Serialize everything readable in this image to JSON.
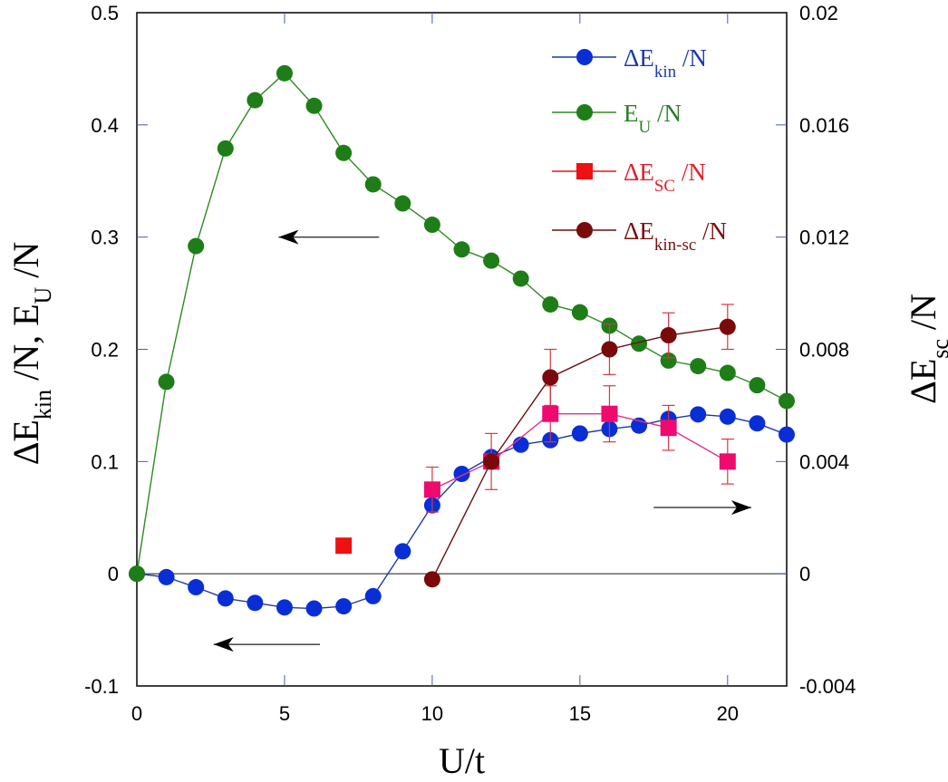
{
  "chart_data": {
    "type": "line",
    "title": "",
    "xlabel": "U/t",
    "ylabel_left": {
      "main": "ΔE",
      "sub": "kin",
      "rest": " /N,  E",
      "sub2": "U",
      "rest2": " /N"
    },
    "ylabel_right": {
      "main": "ΔE",
      "sub": "sc",
      "rest": " /N"
    },
    "xlim": [
      0,
      22
    ],
    "ylim_left": [
      -0.1,
      0.5
    ],
    "ylim_right": [
      -0.004,
      0.02
    ],
    "x_ticks": [
      "0",
      "5",
      "10",
      "15",
      "20"
    ],
    "x_tick_values": [
      0,
      5,
      10,
      15,
      20
    ],
    "y_left_ticks": [
      "-0.1",
      "0",
      "0.1",
      "0.2",
      "0.3",
      "0.4",
      "0.5"
    ],
    "y_left_tick_values": [
      -0.1,
      0,
      0.1,
      0.2,
      0.3,
      0.4,
      0.5
    ],
    "y_right_ticks": [
      "-0.004",
      "0",
      "0.004",
      "0.008",
      "0.012",
      "0.016",
      "0.02"
    ],
    "y_right_tick_values": [
      -0.004,
      0,
      0.004,
      0.008,
      0.012,
      0.016,
      0.02
    ],
    "zero_line": true,
    "grid": false,
    "legend_position": "top-right",
    "series": [
      {
        "name": "ΔE_kin /N",
        "legend": {
          "main": "ΔE",
          "sub": "kin",
          "rest": " /N"
        },
        "axis": "left",
        "marker": "circle",
        "color": "#0a2ed6",
        "line_color": "#1f3a9e",
        "x": [
          0,
          1,
          2,
          3,
          4,
          5,
          6,
          7,
          8,
          9,
          10,
          11,
          12,
          13,
          14,
          15,
          16,
          17,
          18,
          19,
          20,
          21,
          22
        ],
        "y": [
          0,
          -0.003,
          -0.012,
          -0.022,
          -0.026,
          -0.03,
          -0.031,
          -0.029,
          -0.02,
          0.02,
          0.061,
          0.089,
          0.104,
          0.115,
          0.119,
          0.125,
          0.129,
          0.132,
          0.138,
          0.142,
          0.14,
          0.134,
          0.124
        ]
      },
      {
        "name": "E_U /N",
        "legend": {
          "main": "E",
          "sub": "U",
          "rest": " /N"
        },
        "axis": "left",
        "marker": "circle",
        "color": "#1e7d17",
        "line_color": "#2e8a22",
        "x": [
          0,
          1,
          2,
          3,
          4,
          5,
          6,
          7,
          8,
          9,
          10,
          11,
          12,
          13,
          14,
          15,
          16,
          17,
          18,
          19,
          20,
          21,
          22
        ],
        "y": [
          0,
          0.171,
          0.292,
          0.379,
          0.422,
          0.446,
          0.417,
          0.375,
          0.347,
          0.33,
          0.311,
          0.289,
          0.279,
          0.263,
          0.24,
          0.233,
          0.221,
          0.205,
          0.19,
          0.185,
          0.179,
          0.168,
          0.154
        ]
      },
      {
        "name": "ΔE_sc /N",
        "legend": {
          "main": "ΔE",
          "sub": "SC",
          "rest": " /N"
        },
        "axis": "right",
        "marker": "square",
        "color": "#ee0a6e",
        "legend_color": "#ee1111",
        "line_color": "#e0338a",
        "error_color": "#d8383e",
        "isolated": [
          {
            "x": 7,
            "y": 0.001,
            "color": "#ee1111"
          }
        ],
        "x": [
          10,
          12,
          14,
          16,
          18,
          20
        ],
        "y": [
          0.003,
          0.004,
          0.0057,
          0.0057,
          0.0052,
          0.004
        ],
        "err": [
          0.0008,
          0.001,
          0.001,
          0.001,
          0.0008,
          0.0008
        ]
      },
      {
        "name": "ΔE_kin-sc /N",
        "legend": {
          "main": "ΔE",
          "sub": "kin-sc",
          "rest": " /N"
        },
        "axis": "right",
        "marker": "circle",
        "color": "#7a0a0a",
        "line_color": "#6b0f14",
        "error_color": "#d8383e",
        "x": [
          10,
          12,
          14,
          16,
          18,
          20
        ],
        "y": [
          -0.0002,
          0.004,
          0.007,
          0.008,
          0.0085,
          0.0088
        ],
        "err": [
          0,
          0,
          0.001,
          0.0009,
          0.0008,
          0.0008
        ]
      }
    ],
    "annotations": [
      {
        "type": "arrow",
        "direction": "left",
        "meaning": "green curve uses left axis",
        "from": [
          8.2,
          0.3
        ],
        "to": [
          4.8,
          0.3
        ]
      },
      {
        "type": "arrow",
        "direction": "left",
        "meaning": "blue curve uses left axis",
        "from": [
          6.2,
          -0.063
        ],
        "to": [
          2.6,
          -0.063
        ]
      },
      {
        "type": "arrow",
        "direction": "right",
        "meaning": "squares use right axis",
        "from": [
          17.5,
          0.059
        ],
        "to": [
          20.8,
          0.059
        ]
      }
    ]
  }
}
